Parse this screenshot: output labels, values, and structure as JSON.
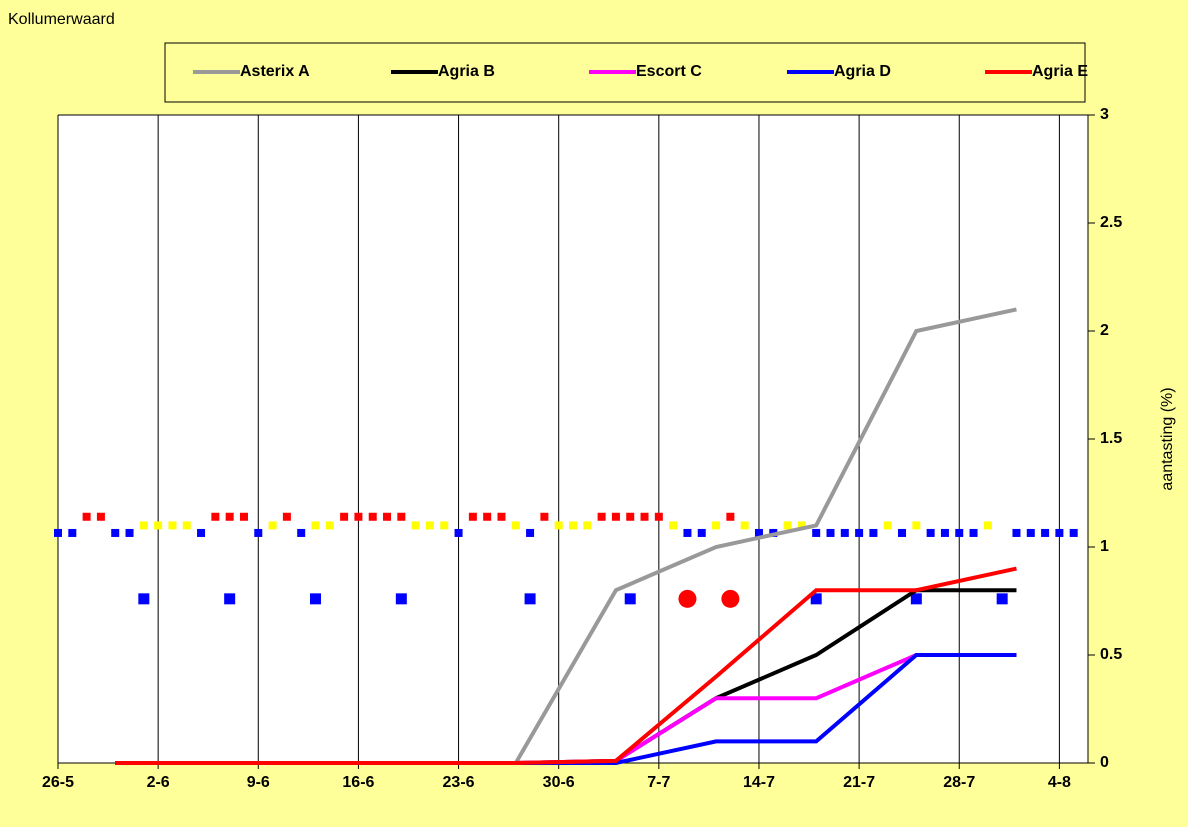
{
  "chart_data": {
    "type": "line",
    "title": "Kollumerwaard",
    "y_label": "aantasting (%)",
    "xlim": [
      0,
      72
    ],
    "xticks": [
      {
        "value": 0,
        "label": "26-5"
      },
      {
        "value": 7,
        "label": "2-6"
      },
      {
        "value": 14,
        "label": "9-6"
      },
      {
        "value": 21,
        "label": "16-6"
      },
      {
        "value": 28,
        "label": "23-6"
      },
      {
        "value": 35,
        "label": "30-6"
      },
      {
        "value": 42,
        "label": "7-7"
      },
      {
        "value": 49,
        "label": "14-7"
      },
      {
        "value": 56,
        "label": "21-7"
      },
      {
        "value": 63,
        "label": "28-7"
      },
      {
        "value": 70,
        "label": "4-8"
      }
    ],
    "ylim": [
      0,
      3
    ],
    "yticks": [
      0,
      0.5,
      1,
      1.5,
      2,
      2.5,
      3
    ],
    "grid": true,
    "x": [
      4,
      11,
      18,
      25,
      32,
      39,
      46,
      53,
      60,
      67
    ],
    "series": [
      {
        "name": "Asterix A",
        "color": "#999999",
        "values": [
          0,
          0,
          0,
          0,
          0,
          0.8,
          1.0,
          1.1,
          2.0,
          2.1
        ]
      },
      {
        "name": "Agria B",
        "color": "#000000",
        "values": [
          0,
          0,
          0,
          0,
          0,
          0.01,
          0.3,
          0.5,
          0.8,
          0.8
        ]
      },
      {
        "name": "Escort C",
        "color": "#ff00ff",
        "values": [
          0,
          0,
          0,
          0,
          0,
          0.01,
          0.3,
          0.3,
          0.5,
          0.5
        ]
      },
      {
        "name": "Agria D",
        "color": "#0000ff",
        "values": [
          0,
          0,
          0,
          0,
          0,
          0,
          0.1,
          0.1,
          0.5,
          0.5
        ]
      },
      {
        "name": "Agria E",
        "color": "#ff0000",
        "values": [
          0,
          0,
          0,
          0,
          0,
          0.01,
          0.4,
          0.8,
          0.8,
          0.9
        ]
      }
    ],
    "markers": [
      {
        "color": "#0000ff",
        "shape": "square",
        "x": [
          0,
          1,
          4,
          5,
          10,
          14,
          17,
          28,
          33,
          44,
          45,
          49,
          50,
          53,
          54,
          55,
          56,
          57,
          59,
          61,
          62,
          63,
          64,
          67,
          68,
          69,
          70,
          71
        ],
        "values": [
          1.065,
          1.065,
          1.065,
          1.065,
          1.065,
          1.065,
          1.065,
          1.065,
          1.065,
          1.065,
          1.065,
          1.065,
          1.065,
          1.065,
          1.065,
          1.065,
          1.065,
          1.065,
          1.065,
          1.065,
          1.065,
          1.065,
          1.065,
          1.065,
          1.065,
          1.065,
          1.065,
          1.065
        ]
      },
      {
        "color": "#ff0000",
        "shape": "square",
        "x": [
          2,
          3,
          11,
          12,
          13,
          16,
          20,
          21,
          22,
          23,
          24,
          29,
          30,
          31,
          34,
          38,
          39,
          40,
          41,
          42,
          47
        ],
        "values": [
          1.14,
          1.14,
          1.14,
          1.14,
          1.14,
          1.14,
          1.14,
          1.14,
          1.14,
          1.14,
          1.14,
          1.14,
          1.14,
          1.14,
          1.14,
          1.14,
          1.14,
          1.14,
          1.14,
          1.14,
          1.14
        ]
      },
      {
        "color": "#ffff00",
        "shape": "square",
        "x": [
          6,
          7,
          8,
          9,
          15,
          18,
          19,
          25,
          26,
          27,
          32,
          35,
          36,
          37,
          43,
          46,
          48,
          51,
          52,
          58,
          60,
          65
        ],
        "values": [
          1.1,
          1.1,
          1.1,
          1.1,
          1.1,
          1.1,
          1.1,
          1.1,
          1.1,
          1.1,
          1.1,
          1.1,
          1.1,
          1.1,
          1.1,
          1.1,
          1.1,
          1.1,
          1.1,
          1.1,
          1.1,
          1.1
        ]
      },
      {
        "color": "#0000ff",
        "shape": "bigsquare",
        "x": [
          6,
          12,
          18,
          24,
          33,
          40,
          53,
          60,
          66
        ],
        "values": [
          0.76,
          0.76,
          0.76,
          0.76,
          0.76,
          0.76,
          0.76,
          0.76,
          0.76
        ]
      },
      {
        "color": "#ff0000",
        "shape": "circle",
        "x": [
          44,
          47
        ],
        "values": [
          0.76,
          0.76
        ]
      }
    ]
  }
}
